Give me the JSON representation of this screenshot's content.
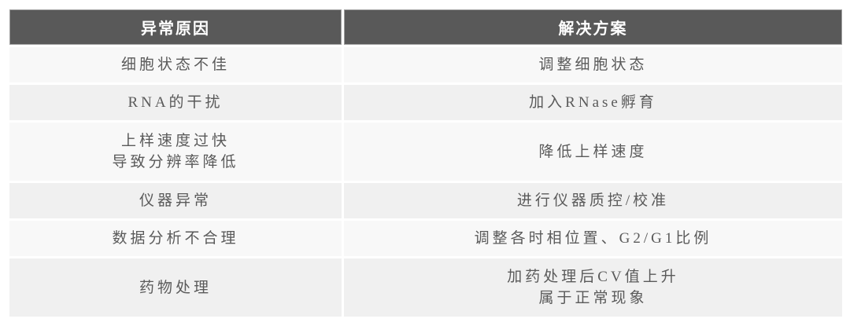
{
  "table": {
    "columns": {
      "cause_label": "异常原因",
      "solution_label": "解决方案"
    },
    "rows": [
      {
        "cause": "细胞状态不佳",
        "solution": "调整细胞状态"
      },
      {
        "cause": "RNA的干扰",
        "solution": "加入RNase孵育"
      },
      {
        "cause": "上样速度过快\n导致分辨率降低",
        "solution": "降低上样速度"
      },
      {
        "cause": "仪器异常",
        "solution": "进行仪器质控/校准"
      },
      {
        "cause": "数据分析不合理",
        "solution": "调整各时相位置、G2/G1比例"
      },
      {
        "cause": "药物处理",
        "solution": "加药处理后CV值上升\n属于正常现象"
      }
    ],
    "colors": {
      "header_bg": "#595959",
      "header_text": "#ffffff",
      "header_border": "#9e9e9e",
      "row_light_bg": "#f8f8f8",
      "row_dark_bg": "#f0f0f0",
      "body_text": "#5a5a5a",
      "page_bg": "#ffffff"
    }
  }
}
